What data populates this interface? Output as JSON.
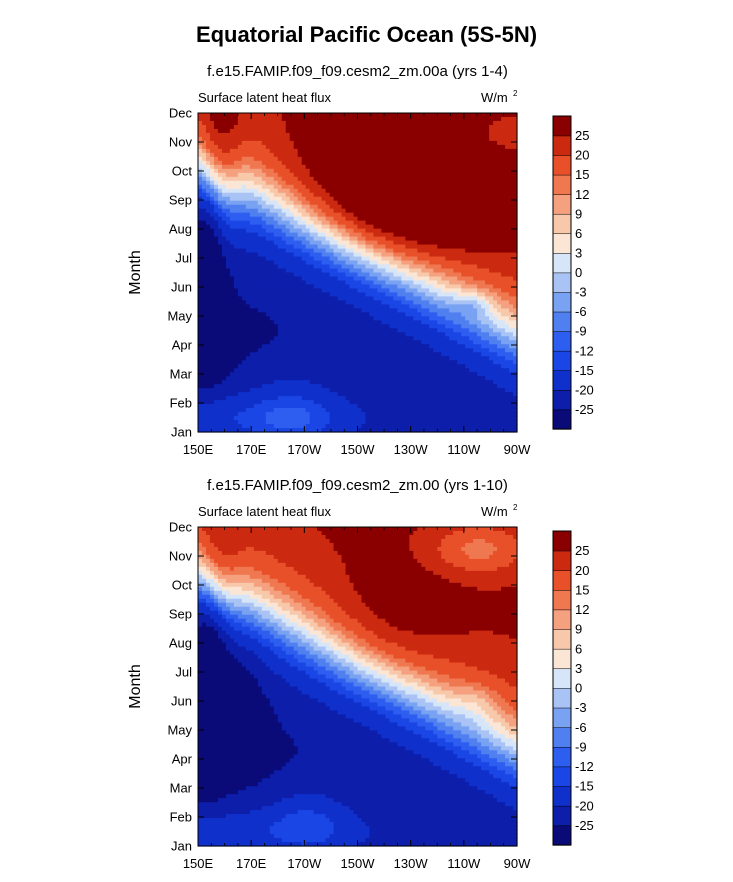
{
  "title": "Equatorial Pacific Ocean (5S-5N)",
  "chart_data": [
    {
      "type": "heatmap",
      "title": "f.e15.FAMIP.f09_f09.cesm2_zm.00a (yrs 1-4)",
      "left_label": "Surface latent heat flux",
      "right_label_base": "W/m",
      "right_label_sup": "2",
      "ylabel": "Month",
      "x_ticks": [
        "150E",
        "170E",
        "170W",
        "150W",
        "130W",
        "110W",
        "90W"
      ],
      "x_values": [
        150,
        170,
        190,
        210,
        230,
        250,
        270
      ],
      "xlim": [
        150,
        270
      ],
      "y_ticks": [
        "Jan",
        "Feb",
        "Mar",
        "Apr",
        "May",
        "Jun",
        "Jul",
        "Aug",
        "Sep",
        "Oct",
        "Nov",
        "Dec"
      ],
      "ylim": [
        1,
        12
      ],
      "colorbar_levels": [
        -25,
        -20,
        -15,
        -12,
        -9,
        -6,
        -3,
        0,
        3,
        6,
        9,
        12,
        15,
        20,
        25
      ]
    },
    {
      "type": "heatmap",
      "title": "f.e15.FAMIP.f09_f09.cesm2_zm.00 (yrs 1-10)",
      "left_label": "Surface latent heat flux",
      "right_label_base": "W/m",
      "right_label_sup": "2",
      "ylabel": "Month",
      "x_ticks": [
        "150E",
        "170E",
        "170W",
        "150W",
        "130W",
        "110W",
        "90W"
      ],
      "x_values": [
        150,
        170,
        190,
        210,
        230,
        250,
        270
      ],
      "xlim": [
        150,
        270
      ],
      "y_ticks": [
        "Jan",
        "Feb",
        "Mar",
        "Apr",
        "May",
        "Jun",
        "Jul",
        "Aug",
        "Sep",
        "Oct",
        "Nov",
        "Dec"
      ],
      "ylim": [
        1,
        12
      ],
      "colorbar_levels": [
        -25,
        -20,
        -15,
        -12,
        -9,
        -6,
        -3,
        0,
        3,
        6,
        9,
        12,
        15,
        20,
        25
      ]
    }
  ],
  "colorbar_colors": [
    "#0a0a78",
    "#0c1eaa",
    "#1030cc",
    "#1a46e6",
    "#2e5ef0",
    "#5080f0",
    "#7aa2f2",
    "#a9c3f5",
    "#d6e5f8",
    "#fbe6d6",
    "#f8c8aa",
    "#f5a07e",
    "#f07850",
    "#e8502a",
    "#cc2a10",
    "#8a0000"
  ]
}
